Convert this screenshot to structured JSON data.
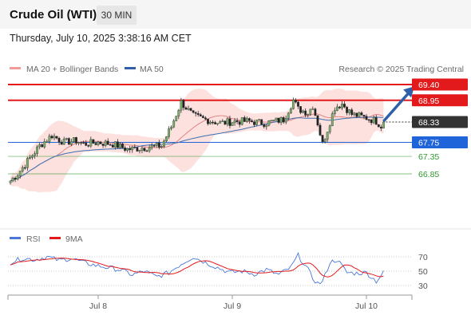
{
  "header": {
    "title": "Crude Oil (WTI)",
    "timeframe": "30 MIN"
  },
  "timestamp": "Thursday, July 10, 2025 3:38:16 AM CET",
  "colors": {
    "red": "#e31a1c",
    "blue": "#1f64d8",
    "green": "#2e9a2e",
    "ma50": "#3a6fb0",
    "band": "#f9c9c3",
    "ma20": "#e27b7b",
    "up": "#7ab36a",
    "down": "#222222",
    "arrow": "#2f5fa8",
    "rsi": "#4a78d6",
    "rsi_ma": "#e31a1c"
  },
  "chart_data": [
    {
      "type": "candlestick",
      "title": "Crude Oil (WTI)",
      "legend": [
        {
          "label": "MA 20 + Bollinger Bands",
          "color": "#f09a9a"
        },
        {
          "label": "MA 50",
          "color": "#2f5fa8"
        }
      ],
      "credit": "Research © 2025 Trading Central",
      "x_ticks": [
        {
          "label": "Jul 8",
          "bar": 36
        },
        {
          "label": "Jul 9",
          "bar": 91
        },
        {
          "label": "Jul 10",
          "bar": 146
        }
      ],
      "ylim": [
        66.45,
        69.55
      ],
      "levels": [
        {
          "value": 69.4,
          "label": "69.40",
          "style": "resistance",
          "badge": true
        },
        {
          "value": 68.95,
          "label": "68.95",
          "style": "resistance",
          "badge": true
        },
        {
          "value": 68.33,
          "label": "68.33",
          "style": "last",
          "badge": true
        },
        {
          "value": 67.75,
          "label": "67.75",
          "style": "pivot",
          "badge": true
        },
        {
          "value": 67.35,
          "label": "67.35",
          "style": "support",
          "badge": false
        },
        {
          "value": 66.85,
          "label": "66.85",
          "style": "support",
          "badge": false
        }
      ],
      "forecast_arrow": {
        "from_bar": 153,
        "from": 68.35,
        "to_bar": 165,
        "to": 69.3
      },
      "ohlc_anchor_bars": [
        0,
        3,
        8,
        12,
        17,
        22,
        27,
        30,
        36,
        42,
        48,
        55,
        62,
        66,
        70,
        75,
        80,
        86,
        92,
        98,
        104,
        112,
        116,
        118,
        122,
        124,
        126,
        128,
        133,
        136,
        140,
        146,
        150,
        152,
        153
      ],
      "ohlc_anchor_close": [
        66.65,
        66.85,
        67.3,
        67.65,
        67.95,
        67.75,
        67.8,
        67.7,
        67.75,
        67.7,
        67.55,
        67.6,
        67.65,
        68.2,
        68.9,
        68.5,
        68.4,
        68.3,
        68.35,
        68.35,
        68.3,
        68.4,
        68.95,
        68.7,
        68.6,
        68.8,
        68.3,
        67.7,
        68.75,
        68.85,
        68.55,
        68.45,
        68.35,
        68.22,
        68.33
      ]
    },
    {
      "type": "line",
      "title": "RSI",
      "legend": [
        {
          "label": "RSI",
          "color": "#4a78d6"
        },
        {
          "label": "9MA",
          "color": "#e31a1c"
        }
      ],
      "ylim": [
        22,
        80
      ],
      "y_ticks": [
        70,
        50,
        30
      ],
      "rsi_anchor_bars": [
        0,
        5,
        10,
        15,
        20,
        25,
        30,
        35,
        40,
        45,
        50,
        55,
        60,
        65,
        70,
        75,
        80,
        85,
        90,
        95,
        100,
        105,
        110,
        115,
        118,
        122,
        124,
        126,
        128,
        131,
        134,
        138,
        142,
        146,
        150,
        153
      ],
      "rsi_anchor_values": [
        62,
        68,
        66,
        70,
        65,
        68,
        62,
        58,
        55,
        52,
        45,
        50,
        42,
        48,
        60,
        70,
        62,
        55,
        48,
        50,
        46,
        52,
        45,
        55,
        72,
        52,
        40,
        33,
        35,
        62,
        66,
        48,
        47,
        48,
        36,
        48
      ]
    }
  ]
}
